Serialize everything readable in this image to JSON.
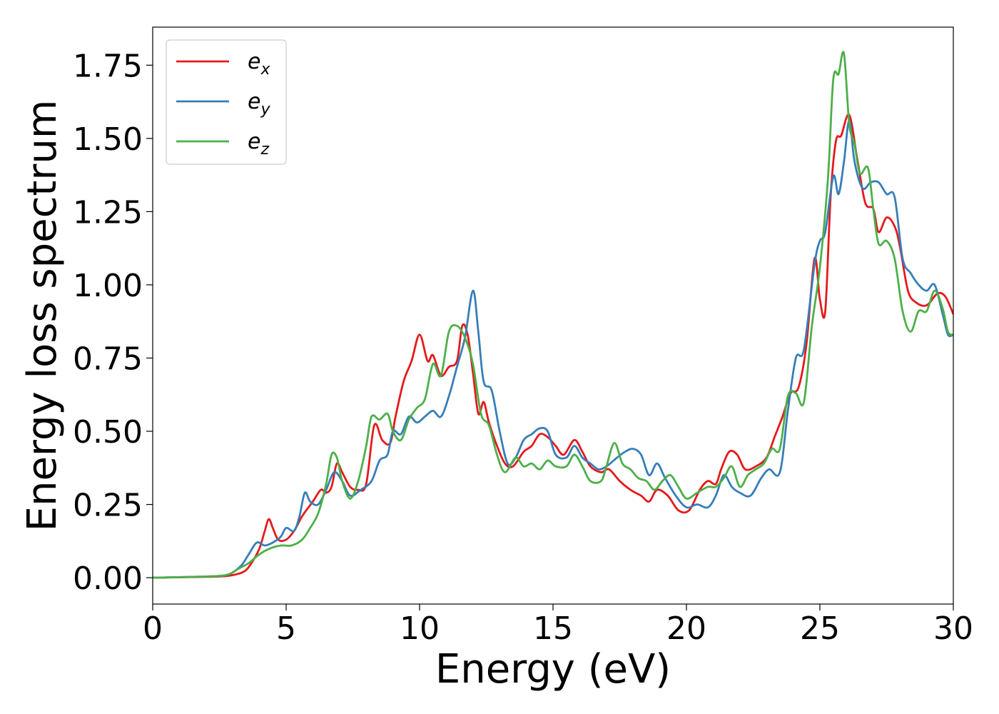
{
  "chart_data": {
    "type": "line",
    "title": "",
    "xlabel": "Energy (eV)",
    "ylabel": "Energy loss spectrum",
    "xlim": [
      0,
      30
    ],
    "ylim": [
      -0.09,
      1.88
    ],
    "xticks": [
      0,
      5,
      10,
      15,
      20,
      25,
      30
    ],
    "xtick_labels": [
      "0",
      "5",
      "10",
      "15",
      "20",
      "25",
      "30"
    ],
    "yticks": [
      0.0,
      0.25,
      0.5,
      0.75,
      1.0,
      1.25,
      1.5,
      1.75
    ],
    "ytick_labels": [
      "0.00",
      "0.25",
      "0.50",
      "0.75",
      "1.00",
      "1.25",
      "1.50",
      "1.75"
    ],
    "grid": false,
    "legend_position": "top-left",
    "series": [
      {
        "name": "e_x",
        "legend_base": "e",
        "legend_sub": "x",
        "color": "#e41a1c",
        "points": [
          [
            0,
            0
          ],
          [
            2,
            0.003
          ],
          [
            2.8,
            0.006
          ],
          [
            3.4,
            0.02
          ],
          [
            3.7,
            0.05
          ],
          [
            4.0,
            0.1
          ],
          [
            4.2,
            0.16
          ],
          [
            4.35,
            0.2
          ],
          [
            4.5,
            0.17
          ],
          [
            4.7,
            0.13
          ],
          [
            5.0,
            0.13
          ],
          [
            5.3,
            0.16
          ],
          [
            5.6,
            0.21
          ],
          [
            6.0,
            0.26
          ],
          [
            6.3,
            0.3
          ],
          [
            6.5,
            0.29
          ],
          [
            6.7,
            0.31
          ],
          [
            6.9,
            0.39
          ],
          [
            7.1,
            0.36
          ],
          [
            7.4,
            0.31
          ],
          [
            7.7,
            0.3
          ],
          [
            8.0,
            0.32
          ],
          [
            8.3,
            0.52
          ],
          [
            8.6,
            0.47
          ],
          [
            8.9,
            0.46
          ],
          [
            9.1,
            0.55
          ],
          [
            9.4,
            0.67
          ],
          [
            9.7,
            0.74
          ],
          [
            10.0,
            0.83
          ],
          [
            10.3,
            0.74
          ],
          [
            10.5,
            0.76
          ],
          [
            10.8,
            0.69
          ],
          [
            11.1,
            0.72
          ],
          [
            11.4,
            0.74
          ],
          [
            11.6,
            0.86
          ],
          [
            11.8,
            0.83
          ],
          [
            12.0,
            0.7
          ],
          [
            12.2,
            0.56
          ],
          [
            12.4,
            0.6
          ],
          [
            12.6,
            0.53
          ],
          [
            12.9,
            0.45
          ],
          [
            13.2,
            0.39
          ],
          [
            13.5,
            0.38
          ],
          [
            13.9,
            0.43
          ],
          [
            14.2,
            0.45
          ],
          [
            14.5,
            0.49
          ],
          [
            14.8,
            0.48
          ],
          [
            15.1,
            0.45
          ],
          [
            15.4,
            0.42
          ],
          [
            15.8,
            0.47
          ],
          [
            16.1,
            0.43
          ],
          [
            16.4,
            0.38
          ],
          [
            16.8,
            0.36
          ],
          [
            17.1,
            0.37
          ],
          [
            17.5,
            0.33
          ],
          [
            17.9,
            0.3
          ],
          [
            18.3,
            0.28
          ],
          [
            18.6,
            0.26
          ],
          [
            18.9,
            0.3
          ],
          [
            19.3,
            0.28
          ],
          [
            19.7,
            0.23
          ],
          [
            20.1,
            0.23
          ],
          [
            20.5,
            0.3
          ],
          [
            20.8,
            0.33
          ],
          [
            21.1,
            0.32
          ],
          [
            21.3,
            0.37
          ],
          [
            21.6,
            0.43
          ],
          [
            21.9,
            0.42
          ],
          [
            22.2,
            0.37
          ],
          [
            22.6,
            0.38
          ],
          [
            23.0,
            0.41
          ],
          [
            23.3,
            0.48
          ],
          [
            23.6,
            0.55
          ],
          [
            23.9,
            0.63
          ],
          [
            24.2,
            0.65
          ],
          [
            24.5,
            0.8
          ],
          [
            24.8,
            1.09
          ],
          [
            25.0,
            0.95
          ],
          [
            25.2,
            0.91
          ],
          [
            25.4,
            1.3
          ],
          [
            25.6,
            1.49
          ],
          [
            25.8,
            1.51
          ],
          [
            26.1,
            1.58
          ],
          [
            26.4,
            1.43
          ],
          [
            26.7,
            1.28
          ],
          [
            27.0,
            1.26
          ],
          [
            27.2,
            1.18
          ],
          [
            27.5,
            1.23
          ],
          [
            27.8,
            1.2
          ],
          [
            28.0,
            1.13
          ],
          [
            28.3,
            0.98
          ],
          [
            28.6,
            0.94
          ],
          [
            29.0,
            0.93
          ],
          [
            29.4,
            0.97
          ],
          [
            29.7,
            0.96
          ],
          [
            30.0,
            0.9
          ]
        ]
      },
      {
        "name": "e_y",
        "legend_base": "e",
        "legend_sub": "y",
        "color": "#377eb8",
        "points": [
          [
            0,
            0
          ],
          [
            2,
            0.004
          ],
          [
            2.8,
            0.01
          ],
          [
            3.3,
            0.04
          ],
          [
            3.6,
            0.08
          ],
          [
            3.9,
            0.12
          ],
          [
            4.2,
            0.11
          ],
          [
            4.5,
            0.12
          ],
          [
            4.8,
            0.14
          ],
          [
            5.0,
            0.17
          ],
          [
            5.3,
            0.16
          ],
          [
            5.5,
            0.21
          ],
          [
            5.7,
            0.29
          ],
          [
            5.9,
            0.26
          ],
          [
            6.2,
            0.25
          ],
          [
            6.5,
            0.3
          ],
          [
            6.8,
            0.36
          ],
          [
            7.1,
            0.33
          ],
          [
            7.4,
            0.28
          ],
          [
            7.8,
            0.3
          ],
          [
            8.2,
            0.33
          ],
          [
            8.5,
            0.4
          ],
          [
            8.8,
            0.42
          ],
          [
            9.0,
            0.5
          ],
          [
            9.3,
            0.49
          ],
          [
            9.6,
            0.55
          ],
          [
            9.9,
            0.53
          ],
          [
            10.2,
            0.55
          ],
          [
            10.5,
            0.57
          ],
          [
            10.8,
            0.55
          ],
          [
            11.1,
            0.62
          ],
          [
            11.4,
            0.72
          ],
          [
            11.7,
            0.82
          ],
          [
            12.0,
            0.98
          ],
          [
            12.2,
            0.84
          ],
          [
            12.4,
            0.67
          ],
          [
            12.7,
            0.64
          ],
          [
            13.0,
            0.5
          ],
          [
            13.3,
            0.39
          ],
          [
            13.6,
            0.41
          ],
          [
            13.9,
            0.47
          ],
          [
            14.2,
            0.49
          ],
          [
            14.5,
            0.51
          ],
          [
            14.8,
            0.5
          ],
          [
            15.1,
            0.42
          ],
          [
            15.5,
            0.41
          ],
          [
            15.8,
            0.45
          ],
          [
            16.1,
            0.41
          ],
          [
            16.4,
            0.39
          ],
          [
            16.7,
            0.37
          ],
          [
            17.0,
            0.38
          ],
          [
            17.4,
            0.41
          ],
          [
            17.7,
            0.43
          ],
          [
            18.0,
            0.44
          ],
          [
            18.3,
            0.42
          ],
          [
            18.6,
            0.35
          ],
          [
            18.9,
            0.39
          ],
          [
            19.2,
            0.34
          ],
          [
            19.6,
            0.28
          ],
          [
            20.0,
            0.24
          ],
          [
            20.4,
            0.25
          ],
          [
            20.8,
            0.24
          ],
          [
            21.1,
            0.28
          ],
          [
            21.4,
            0.35
          ],
          [
            21.7,
            0.31
          ],
          [
            22.0,
            0.29
          ],
          [
            22.4,
            0.28
          ],
          [
            22.8,
            0.34
          ],
          [
            23.1,
            0.37
          ],
          [
            23.5,
            0.36
          ],
          [
            23.8,
            0.57
          ],
          [
            24.1,
            0.75
          ],
          [
            24.4,
            0.78
          ],
          [
            24.8,
            1.07
          ],
          [
            25.0,
            1.15
          ],
          [
            25.2,
            1.18
          ],
          [
            25.5,
            1.37
          ],
          [
            25.7,
            1.31
          ],
          [
            25.9,
            1.42
          ],
          [
            26.1,
            1.56
          ],
          [
            26.3,
            1.42
          ],
          [
            26.6,
            1.33
          ],
          [
            26.9,
            1.35
          ],
          [
            27.2,
            1.35
          ],
          [
            27.5,
            1.31
          ],
          [
            27.8,
            1.3
          ],
          [
            28.1,
            1.09
          ],
          [
            28.4,
            1.04
          ],
          [
            28.7,
            1.0
          ],
          [
            29.0,
            0.98
          ],
          [
            29.3,
            1.0
          ],
          [
            29.6,
            0.9
          ],
          [
            29.8,
            0.83
          ],
          [
            30.0,
            0.83
          ]
        ]
      },
      {
        "name": "e_z",
        "legend_base": "e",
        "legend_sub": "z",
        "color": "#4daf4a",
        "points": [
          [
            0,
            0
          ],
          [
            2,
            0.004
          ],
          [
            2.8,
            0.01
          ],
          [
            3.2,
            0.03
          ],
          [
            3.6,
            0.05
          ],
          [
            4.0,
            0.08
          ],
          [
            4.4,
            0.1
          ],
          [
            4.8,
            0.11
          ],
          [
            5.2,
            0.11
          ],
          [
            5.6,
            0.13
          ],
          [
            5.9,
            0.17
          ],
          [
            6.2,
            0.22
          ],
          [
            6.5,
            0.32
          ],
          [
            6.7,
            0.42
          ],
          [
            6.9,
            0.41
          ],
          [
            7.1,
            0.33
          ],
          [
            7.4,
            0.27
          ],
          [
            7.7,
            0.33
          ],
          [
            8.0,
            0.45
          ],
          [
            8.2,
            0.55
          ],
          [
            8.5,
            0.54
          ],
          [
            8.8,
            0.56
          ],
          [
            9.0,
            0.5
          ],
          [
            9.3,
            0.47
          ],
          [
            9.6,
            0.54
          ],
          [
            9.9,
            0.58
          ],
          [
            10.2,
            0.61
          ],
          [
            10.5,
            0.73
          ],
          [
            10.8,
            0.69
          ],
          [
            11.1,
            0.84
          ],
          [
            11.4,
            0.86
          ],
          [
            11.7,
            0.82
          ],
          [
            12.0,
            0.73
          ],
          [
            12.3,
            0.56
          ],
          [
            12.6,
            0.52
          ],
          [
            12.9,
            0.42
          ],
          [
            13.2,
            0.36
          ],
          [
            13.6,
            0.41
          ],
          [
            13.9,
            0.38
          ],
          [
            14.2,
            0.39
          ],
          [
            14.5,
            0.37
          ],
          [
            14.8,
            0.4
          ],
          [
            15.1,
            0.38
          ],
          [
            15.5,
            0.38
          ],
          [
            15.8,
            0.42
          ],
          [
            16.1,
            0.38
          ],
          [
            16.4,
            0.33
          ],
          [
            16.8,
            0.33
          ],
          [
            17.0,
            0.38
          ],
          [
            17.3,
            0.46
          ],
          [
            17.6,
            0.39
          ],
          [
            17.9,
            0.37
          ],
          [
            18.2,
            0.34
          ],
          [
            18.5,
            0.33
          ],
          [
            18.8,
            0.3
          ],
          [
            19.1,
            0.33
          ],
          [
            19.4,
            0.35
          ],
          [
            19.7,
            0.31
          ],
          [
            20.0,
            0.27
          ],
          [
            20.4,
            0.29
          ],
          [
            20.8,
            0.31
          ],
          [
            21.1,
            0.31
          ],
          [
            21.4,
            0.34
          ],
          [
            21.7,
            0.38
          ],
          [
            22.0,
            0.31
          ],
          [
            22.3,
            0.35
          ],
          [
            22.6,
            0.37
          ],
          [
            22.9,
            0.39
          ],
          [
            23.2,
            0.44
          ],
          [
            23.5,
            0.44
          ],
          [
            23.8,
            0.62
          ],
          [
            24.1,
            0.63
          ],
          [
            24.4,
            0.6
          ],
          [
            24.7,
            0.86
          ],
          [
            25.0,
            1.06
          ],
          [
            25.3,
            1.36
          ],
          [
            25.5,
            1.7
          ],
          [
            25.7,
            1.72
          ],
          [
            25.9,
            1.79
          ],
          [
            26.1,
            1.55
          ],
          [
            26.3,
            1.48
          ],
          [
            26.5,
            1.38
          ],
          [
            26.8,
            1.4
          ],
          [
            27.0,
            1.26
          ],
          [
            27.2,
            1.14
          ],
          [
            27.5,
            1.15
          ],
          [
            27.8,
            1.09
          ],
          [
            28.1,
            0.91
          ],
          [
            28.4,
            0.84
          ],
          [
            28.7,
            0.91
          ],
          [
            29.0,
            0.91
          ],
          [
            29.3,
            0.98
          ],
          [
            29.6,
            0.92
          ],
          [
            29.8,
            0.84
          ],
          [
            30.0,
            0.83
          ]
        ]
      }
    ]
  }
}
